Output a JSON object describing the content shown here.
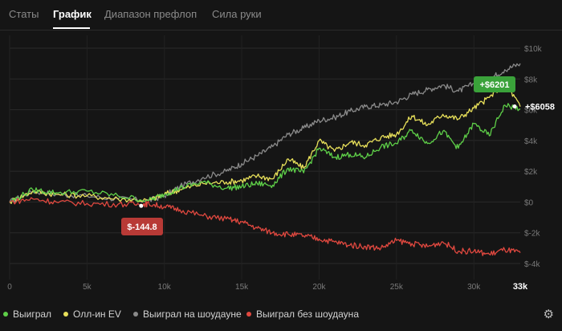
{
  "tabs": [
    {
      "label": "Статы",
      "active": false
    },
    {
      "label": "График",
      "active": true
    },
    {
      "label": "Диапазон префлоп",
      "active": false
    },
    {
      "label": "Сила руки",
      "active": false
    }
  ],
  "chart_data": {
    "type": "line",
    "title": "",
    "xlabel": "",
    "ylabel": "",
    "xlim": [
      0,
      33000
    ],
    "ylim": [
      -4000,
      10000
    ],
    "x_ticks": [
      "0",
      "5k",
      "10k",
      "15k",
      "20k",
      "25k",
      "30k"
    ],
    "x_end_label": "33k",
    "y_ticks": [
      "$10k",
      "$8k",
      "$6k",
      "$4k",
      "$2k",
      "$0",
      "$-2k",
      "$-4k"
    ],
    "grid": true,
    "series": [
      {
        "name": "Выиграл на шоудауне",
        "color": "#8a8a8a",
        "x": [
          0,
          1500,
          3000,
          5000,
          7000,
          9000,
          10000,
          11000,
          12500,
          14000,
          15000,
          16000,
          17000,
          18000,
          19000,
          20000,
          21000,
          22000,
          23000,
          24000,
          25000,
          26000,
          27000,
          28000,
          29000,
          30000,
          31000,
          32000,
          33000
        ],
        "y": [
          0,
          700,
          500,
          400,
          200,
          100,
          400,
          1000,
          1600,
          2000,
          2500,
          3000,
          3600,
          4400,
          4800,
          5300,
          5500,
          5900,
          6200,
          6300,
          6500,
          7000,
          7300,
          7600,
          7200,
          7700,
          8000,
          8600,
          9000
        ]
      },
      {
        "name": "Олл-ин EV",
        "color": "#e8e05a",
        "x": [
          0,
          1500,
          3000,
          5000,
          7000,
          9000,
          10000,
          11000,
          12500,
          14000,
          15000,
          16000,
          17000,
          18000,
          19000,
          20000,
          21000,
          22000,
          23000,
          24000,
          25000,
          26000,
          27000,
          28000,
          29000,
          30000,
          31000,
          32000,
          33000
        ],
        "y": [
          0,
          700,
          500,
          400,
          200,
          100,
          500,
          800,
          1200,
          1300,
          1400,
          1700,
          1500,
          2800,
          2200,
          4000,
          3300,
          3900,
          3700,
          4200,
          4400,
          5600,
          5000,
          5700,
          5400,
          6100,
          6800,
          7800,
          6201
        ]
      },
      {
        "name": "Выиграл",
        "color": "#5ecf48",
        "x": [
          0,
          1500,
          3000,
          5000,
          7000,
          9000,
          10000,
          11000,
          12500,
          14000,
          15000,
          16000,
          17000,
          18000,
          19000,
          20000,
          21000,
          22000,
          23000,
          24000,
          25000,
          26000,
          27000,
          28000,
          29000,
          30000,
          31000,
          32000,
          33000
        ],
        "y": [
          0,
          800,
          600,
          700,
          400,
          100,
          500,
          900,
          1300,
          900,
          1000,
          1200,
          1100,
          2200,
          1900,
          3500,
          2900,
          3100,
          2900,
          3600,
          3800,
          4700,
          3800,
          4600,
          3500,
          5100,
          4300,
          6300,
          6058
        ]
      },
      {
        "name": "Выиграл без шоудауна",
        "color": "#e0483f",
        "x": [
          0,
          1500,
          3000,
          5000,
          7000,
          8500,
          9000,
          10000,
          11000,
          12500,
          14000,
          15000,
          16000,
          17000,
          18000,
          19000,
          20000,
          21000,
          22000,
          23000,
          24000,
          25000,
          26000,
          27000,
          28000,
          29000,
          30000,
          31000,
          32000,
          33000
        ],
        "y": [
          0,
          200,
          0,
          -100,
          -150,
          -145,
          -120,
          -300,
          -500,
          -900,
          -1100,
          -1300,
          -1700,
          -2000,
          -2100,
          -2200,
          -2400,
          -2600,
          -2800,
          -2900,
          -3000,
          -2500,
          -2700,
          -2900,
          -2600,
          -3200,
          -3200,
          -3400,
          -3100,
          -3300
        ]
      }
    ],
    "annotations": [
      {
        "text": "+$6201",
        "color": "#3aa23a",
        "x": 33000,
        "y": 6201
      },
      {
        "text": "+$6058",
        "color": "#ffffff",
        "x": 33000,
        "y": 6058
      },
      {
        "text": "$-144.8",
        "color": "#b83a36",
        "x": 8500,
        "y": -145
      }
    ]
  },
  "legend": [
    {
      "label": "Выиграл",
      "color": "#5ecf48"
    },
    {
      "label": "Олл-ин EV",
      "color": "#e8e05a"
    },
    {
      "label": "Выиграл на шоудауне",
      "color": "#8a8a8a"
    },
    {
      "label": "Выиграл без шоудауна",
      "color": "#e0483f"
    }
  ],
  "settings_icon": "gear-icon"
}
